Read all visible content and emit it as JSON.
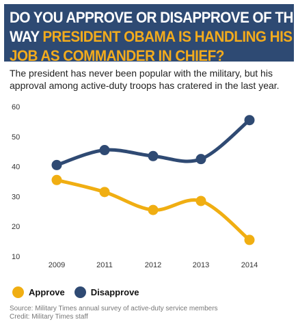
{
  "header": {
    "title_line1": "Do you approve or disapprove of the",
    "title_line2_plain": "way ",
    "title_line2_highlight": "President Obama is handling his",
    "title_line3": "job as commander in chief?"
  },
  "subtitle": "The president has never been popular with the military, but his approval among active-duty troops has cratered in the last year.",
  "footer": {
    "source": "Source: Military Times annual survey of active-duty service members",
    "credit": "Credit: Military Times staff"
  },
  "colors": {
    "header_bg": "#2e4a73",
    "highlight": "#f2ab1d",
    "approve": "#f0ae12",
    "disapprove": "#2f4a73"
  },
  "chart_data": {
    "type": "line",
    "x": [
      "2009",
      "2011",
      "2012",
      "2013",
      "2014"
    ],
    "series": [
      {
        "name": "Approve",
        "values": [
          35.5,
          31.5,
          25.5,
          28.5,
          15.5
        ]
      },
      {
        "name": "Disapprove",
        "values": [
          40.5,
          45.5,
          43.5,
          42.5,
          55.5
        ]
      }
    ],
    "yticks": [
      "60",
      "50",
      "40",
      "30",
      "20",
      "10"
    ],
    "ylim": [
      10,
      60
    ],
    "grid": false,
    "legend_position": "bottom-left"
  }
}
